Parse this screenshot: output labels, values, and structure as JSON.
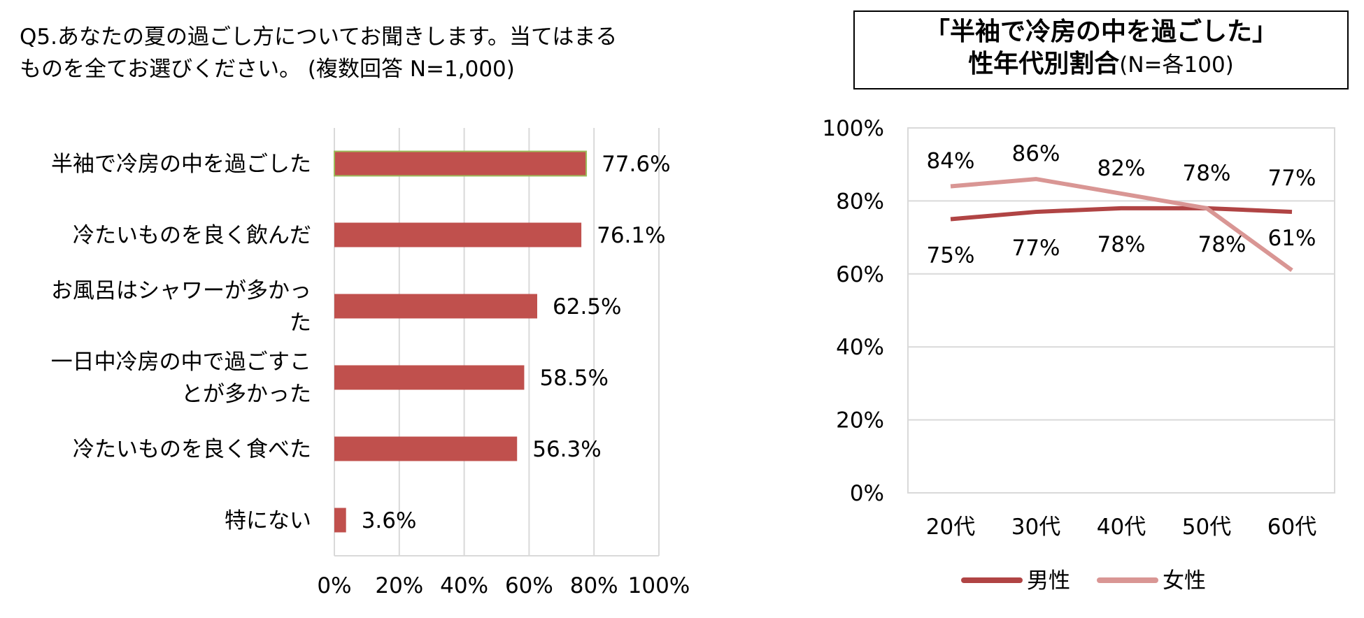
{
  "question": {
    "line1": "Q5.あなたの夏の過ごし方についてお聞きします。当てはまる",
    "line2": "ものを全てお選びください。 (複数回答 N=1,000)"
  },
  "line_chart_title": {
    "line1": "「半袖で冷房の中を過ごした」",
    "line2_main": "性年代別割合",
    "line2_sub": "(N=各100)"
  },
  "colors": {
    "bar": "#c0504d",
    "highlight_border": "#9bbb59",
    "male_line": "#b04444",
    "female_line": "#d99694",
    "grid": "#d9d9d9"
  },
  "chart_data": [
    {
      "type": "bar",
      "orientation": "horizontal",
      "categories": [
        [
          "半袖で冷房の中を過ごした"
        ],
        [
          "冷たいものを良く飲んだ"
        ],
        [
          "お風呂はシャワーが多かっ",
          "た"
        ],
        [
          "一日中冷房の中で過ごすこ",
          "とが多かった"
        ],
        [
          "冷たいものを良く食べた"
        ],
        [
          "特にない"
        ]
      ],
      "values": [
        77.6,
        76.1,
        62.5,
        58.5,
        56.3,
        3.6
      ],
      "data_labels": [
        "77.6%",
        "76.1%",
        "62.5%",
        "58.5%",
        "56.3%",
        "3.6%"
      ],
      "xlim": [
        0,
        100
      ],
      "x_ticks": [
        "0%",
        "20%",
        "40%",
        "60%",
        "80%",
        "100%"
      ],
      "grid": true
    },
    {
      "type": "line",
      "categories": [
        "20代",
        "30代",
        "40代",
        "50代",
        "60代"
      ],
      "series": [
        {
          "name": "男性",
          "values": [
            75,
            77,
            78,
            78,
            77
          ],
          "data_labels": [
            "75%",
            "77%",
            "78%",
            "78%",
            "77%"
          ]
        },
        {
          "name": "女性",
          "values": [
            84,
            86,
            82,
            78,
            61
          ],
          "data_labels": [
            "84%",
            "86%",
            "82%",
            "78%",
            "61%"
          ]
        }
      ],
      "ylim": [
        0,
        100
      ],
      "y_ticks": [
        "0%",
        "20%",
        "40%",
        "60%",
        "80%",
        "100%"
      ],
      "grid": true,
      "legend_position": "bottom"
    }
  ]
}
